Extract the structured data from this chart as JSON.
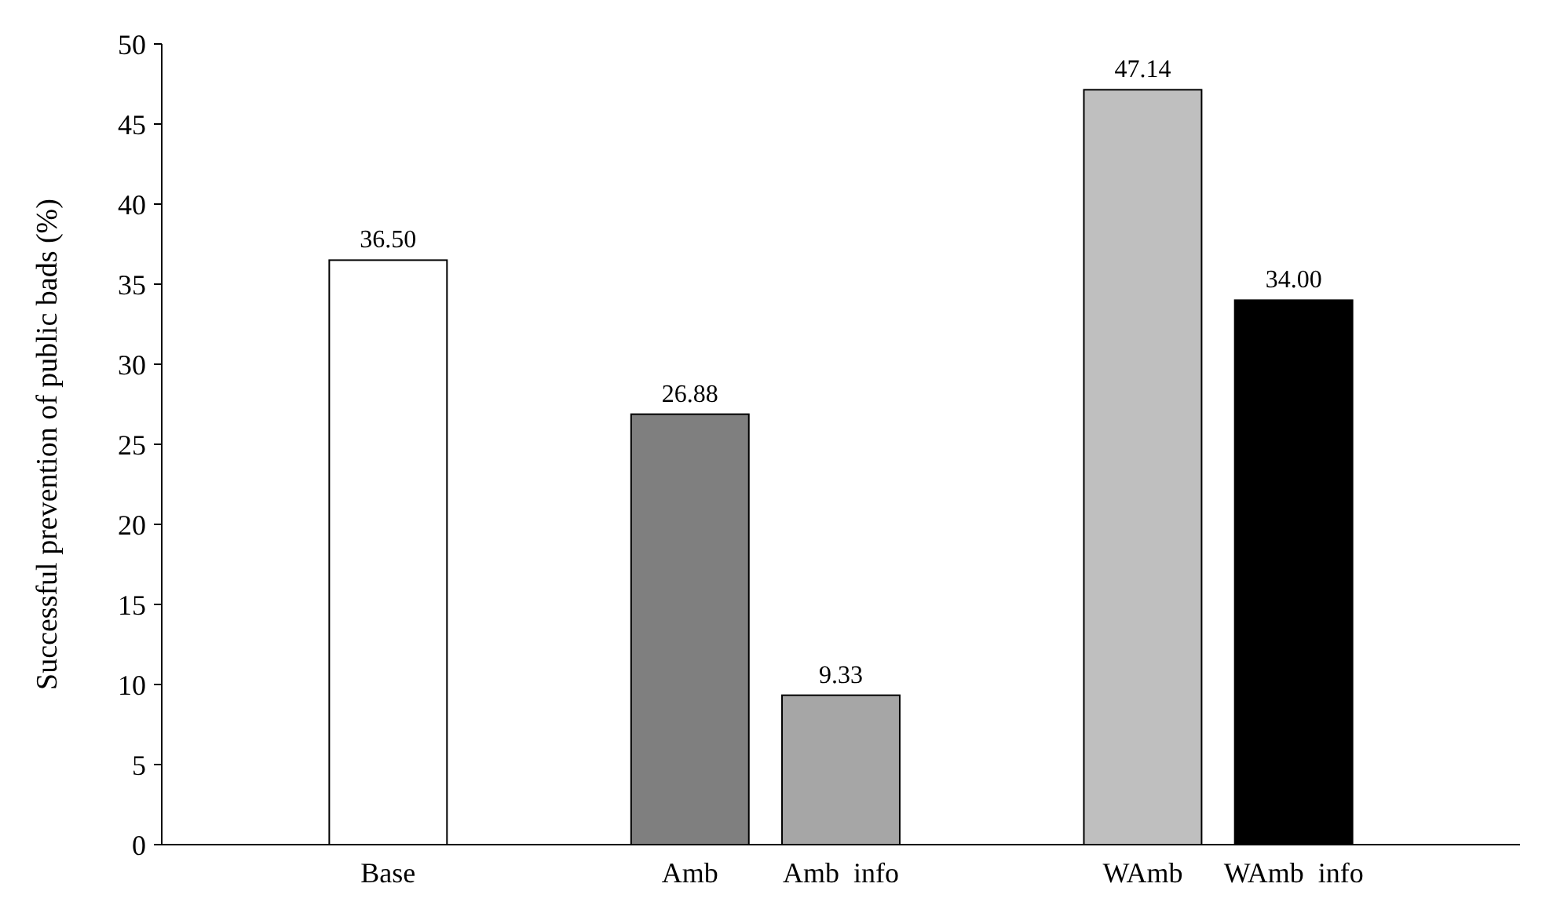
{
  "chart_data": {
    "type": "bar",
    "ylabel": "Successful prevention of public bads (%)",
    "categories": [
      null,
      "Base",
      null,
      "Amb",
      "Amb  info",
      null,
      "WAmb",
      "WAmb  info",
      null
    ],
    "values": [
      null,
      36.5,
      null,
      26.88,
      9.33,
      null,
      47.14,
      34.0,
      null
    ],
    "value_labels": [
      null,
      "36.50",
      null,
      "26.88",
      "9.33",
      null,
      "47.14",
      "34.00",
      null
    ],
    "colors": [
      null,
      "#ffffff",
      null,
      "#7f7f7f",
      "#a6a6a6",
      null,
      "#bfbfbf",
      "#000000",
      null
    ],
    "ylim": [
      0,
      50
    ],
    "yticks": [
      0,
      5,
      10,
      15,
      20,
      25,
      30,
      35,
      40,
      45,
      50
    ],
    "grid": false
  }
}
